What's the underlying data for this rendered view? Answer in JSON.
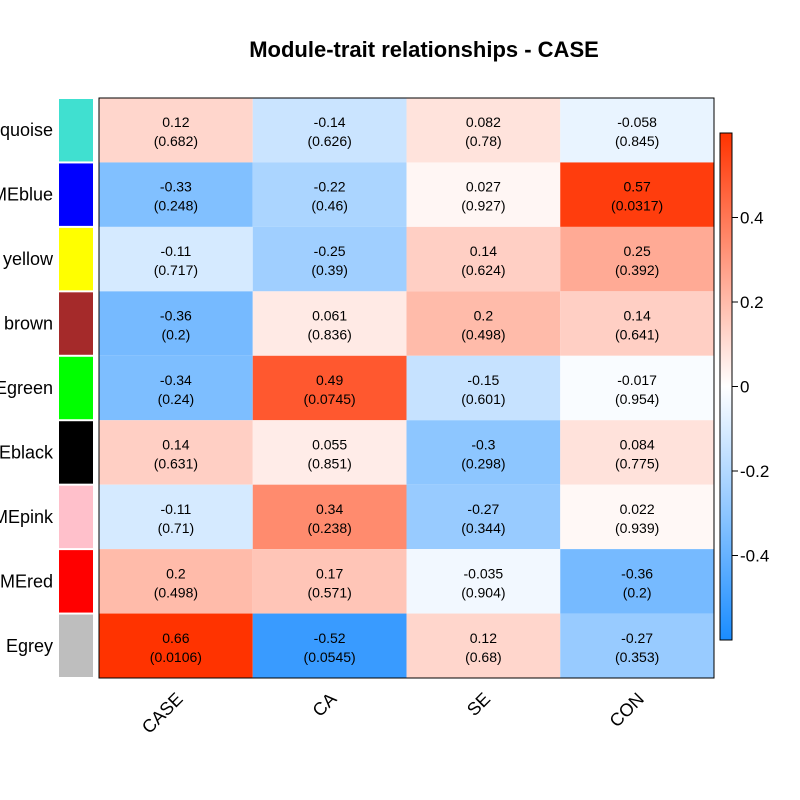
{
  "chart_data": {
    "type": "heatmap",
    "title": "Module-trait relationships - CASE",
    "rows": [
      "quoise",
      "MEblue",
      "yellow",
      "brown",
      "Egreen",
      "Eblack",
      "MEpink",
      "MEred",
      "Egrey"
    ],
    "row_colors": [
      "#40e0d0",
      "#0000ff",
      "#ffff00",
      "#a52a2a",
      "#00ff00",
      "#000000",
      "#ffc0cb",
      "#ff0000",
      "#bebebe"
    ],
    "columns": [
      "CASE",
      "CA",
      "SE",
      "CON"
    ],
    "values": [
      [
        0.12,
        -0.14,
        0.082,
        -0.058
      ],
      [
        -0.33,
        -0.22,
        0.027,
        0.57
      ],
      [
        -0.11,
        -0.25,
        0.14,
        0.25
      ],
      [
        -0.36,
        0.061,
        0.2,
        0.14
      ],
      [
        -0.34,
        0.49,
        -0.15,
        -0.017
      ],
      [
        0.14,
        0.055,
        -0.3,
        0.084
      ],
      [
        -0.11,
        0.34,
        -0.27,
        0.022
      ],
      [
        0.2,
        0.17,
        -0.035,
        -0.36
      ],
      [
        0.66,
        -0.52,
        0.12,
        -0.27
      ]
    ],
    "value_labels": [
      [
        "0.12",
        "-0.14",
        "0.082",
        "-0.058"
      ],
      [
        "-0.33",
        "-0.22",
        "0.027",
        "0.57"
      ],
      [
        "-0.11",
        "-0.25",
        "0.14",
        "0.25"
      ],
      [
        "-0.36",
        "0.061",
        "0.2",
        "0.14"
      ],
      [
        "-0.34",
        "0.49",
        "-0.15",
        "-0.017"
      ],
      [
        "0.14",
        "0.055",
        "-0.3",
        "0.084"
      ],
      [
        "-0.11",
        "0.34",
        "-0.27",
        "0.022"
      ],
      [
        "0.2",
        "0.17",
        "-0.035",
        "-0.36"
      ],
      [
        "0.66",
        "-0.52",
        "0.12",
        "-0.27"
      ]
    ],
    "pvalue_labels": [
      [
        "(0.682)",
        "(0.626)",
        "(0.78)",
        "(0.845)"
      ],
      [
        "(0.248)",
        "(0.46)",
        "(0.927)",
        "(0.0317)"
      ],
      [
        "(0.717)",
        "(0.39)",
        "(0.624)",
        "(0.392)"
      ],
      [
        "(0.2)",
        "(0.836)",
        "(0.498)",
        "(0.641)"
      ],
      [
        "(0.24)",
        "(0.0745)",
        "(0.601)",
        "(0.954)"
      ],
      [
        "(0.631)",
        "(0.851)",
        "(0.298)",
        "(0.775)"
      ],
      [
        "(0.71)",
        "(0.238)",
        "(0.344)",
        "(0.939)"
      ],
      [
        "(0.498)",
        "(0.571)",
        "(0.904)",
        "(0.2)"
      ],
      [
        "(0.0106)",
        "(0.0545)",
        "(0.68)",
        "(0.353)"
      ]
    ],
    "colorbar": {
      "range": [
        -0.6,
        0.6
      ],
      "ticks": [
        0.4,
        0.2,
        0,
        -0.2,
        -0.4
      ],
      "tick_labels": [
        "0.4",
        "0.2",
        "0",
        "-0.2",
        "-0.4"
      ],
      "low_color": "#1a8cff",
      "mid_color": "#ffffff",
      "high_color": "#ff3300"
    },
    "grid": false,
    "legend": "right"
  }
}
